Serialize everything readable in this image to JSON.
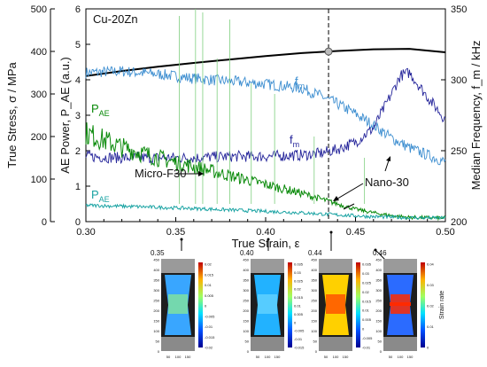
{
  "chart_data": {
    "type": "line",
    "title": "Cu-20Zn",
    "xlabel": "True Strain, ε",
    "ylabel_left_outer": "True Stress, σ / MPa",
    "ylabel_left_inner": "AE Power, P_AE (a.u.)",
    "ylabel_right": "Median Frequency, f_m / kHz",
    "xlim": [
      0.3,
      0.5
    ],
    "ylim_stress": [
      0,
      500
    ],
    "ylim_power": [
      0,
      6
    ],
    "ylim_freq": [
      200,
      350
    ],
    "x_ticks": [
      "0.30",
      "0.35",
      "0.40",
      "0.45",
      "0.50"
    ],
    "stress_ticks": [
      "0",
      "100",
      "200",
      "300",
      "400",
      "500"
    ],
    "power_ticks": [
      "0",
      "1",
      "2",
      "3",
      "4",
      "5",
      "6"
    ],
    "freq_ticks": [
      "200",
      "250",
      "300",
      "350"
    ],
    "marker_strain": 0.435,
    "series": [
      {
        "name": "σ",
        "axis": "stress",
        "color": "#000000",
        "x": [
          0.3,
          0.32,
          0.34,
          0.36,
          0.38,
          0.4,
          0.42,
          0.44,
          0.46,
          0.48,
          0.5
        ],
        "y": [
          342,
          354,
          364,
          373,
          381,
          389,
          396,
          401,
          405,
          406,
          398
        ]
      },
      {
        "name": "f_m",
        "label": "Micro-F30",
        "axis": "freq",
        "color": "#3d8ed0",
        "x": [
          0.3,
          0.32,
          0.34,
          0.36,
          0.38,
          0.4,
          0.42,
          0.43,
          0.44,
          0.45,
          0.46,
          0.47,
          0.48,
          0.49,
          0.5
        ],
        "y": [
          305,
          306,
          304,
          301,
          299,
          297,
          294,
          289,
          283,
          276,
          268,
          259,
          252,
          247,
          242
        ]
      },
      {
        "name": "f_m",
        "label": "Nano-30",
        "axis": "freq",
        "color": "#24249a",
        "x": [
          0.3,
          0.32,
          0.34,
          0.36,
          0.38,
          0.4,
          0.42,
          0.43,
          0.44,
          0.45,
          0.46,
          0.47,
          0.475,
          0.48,
          0.49,
          0.5
        ],
        "y": [
          246,
          245,
          245,
          245,
          246,
          246,
          247,
          248,
          251,
          256,
          266,
          290,
          303,
          305,
          288,
          272
        ]
      },
      {
        "name": "P_AE",
        "label": "Micro-F30",
        "axis": "power",
        "color": "#0a8a0a",
        "x": [
          0.3,
          0.32,
          0.34,
          0.36,
          0.38,
          0.4,
          0.42,
          0.44,
          0.45,
          0.46,
          0.47,
          0.48,
          0.49,
          0.5
        ],
        "y": [
          2.5,
          2.1,
          1.8,
          1.55,
          1.3,
          1.05,
          0.8,
          0.5,
          0.35,
          0.25,
          0.17,
          0.12,
          0.11,
          0.1
        ]
      },
      {
        "name": "P_AE",
        "label": "Nano-30",
        "axis": "power",
        "color": "#1aa3a3",
        "x": [
          0.3,
          0.33,
          0.36,
          0.39,
          0.42,
          0.44,
          0.46,
          0.48,
          0.5
        ],
        "y": [
          0.46,
          0.42,
          0.37,
          0.31,
          0.25,
          0.19,
          0.14,
          0.11,
          0.1
        ]
      }
    ],
    "annotations": [
      {
        "text": "Micro-F30"
      },
      {
        "text": "Nano-30"
      },
      {
        "text": "f",
        "sub": "m"
      },
      {
        "text": "f",
        "sub": "m"
      },
      {
        "text": "P",
        "sub": "AE"
      },
      {
        "text": "P",
        "sub": "AE"
      }
    ],
    "dic_images": [
      {
        "strain": "0.35",
        "colorbar": [
          "0.02",
          "0.015",
          "0.01",
          "0.005",
          "0",
          "-0.005",
          "-0.01",
          "-0.015",
          "-0.02"
        ]
      },
      {
        "strain": "0.40",
        "colorbar": [
          "0.035",
          "0.03",
          "0.025",
          "0.02",
          "0.015",
          "0.01",
          "0.005",
          "0",
          "-0.005",
          "-0.01",
          "-0.015"
        ]
      },
      {
        "strain": "0.44",
        "colorbar": [
          "0.035",
          "0.03",
          "0.025",
          "0.02",
          "0.015",
          "0.01",
          "0.005",
          "0",
          "-0.005",
          "-0.01"
        ]
      },
      {
        "strain": "0.46",
        "colorbar": [
          "0.04",
          "0.03",
          "0.02",
          "0.01",
          "0"
        ],
        "colorbar_title": "Strain rate"
      }
    ],
    "dic_axis_ticks": [
      "0",
      "50",
      "100",
      "150",
      "200",
      "250",
      "300",
      "350",
      "400",
      "450"
    ],
    "dic_x_ticks": [
      "50",
      "100",
      "150"
    ]
  }
}
